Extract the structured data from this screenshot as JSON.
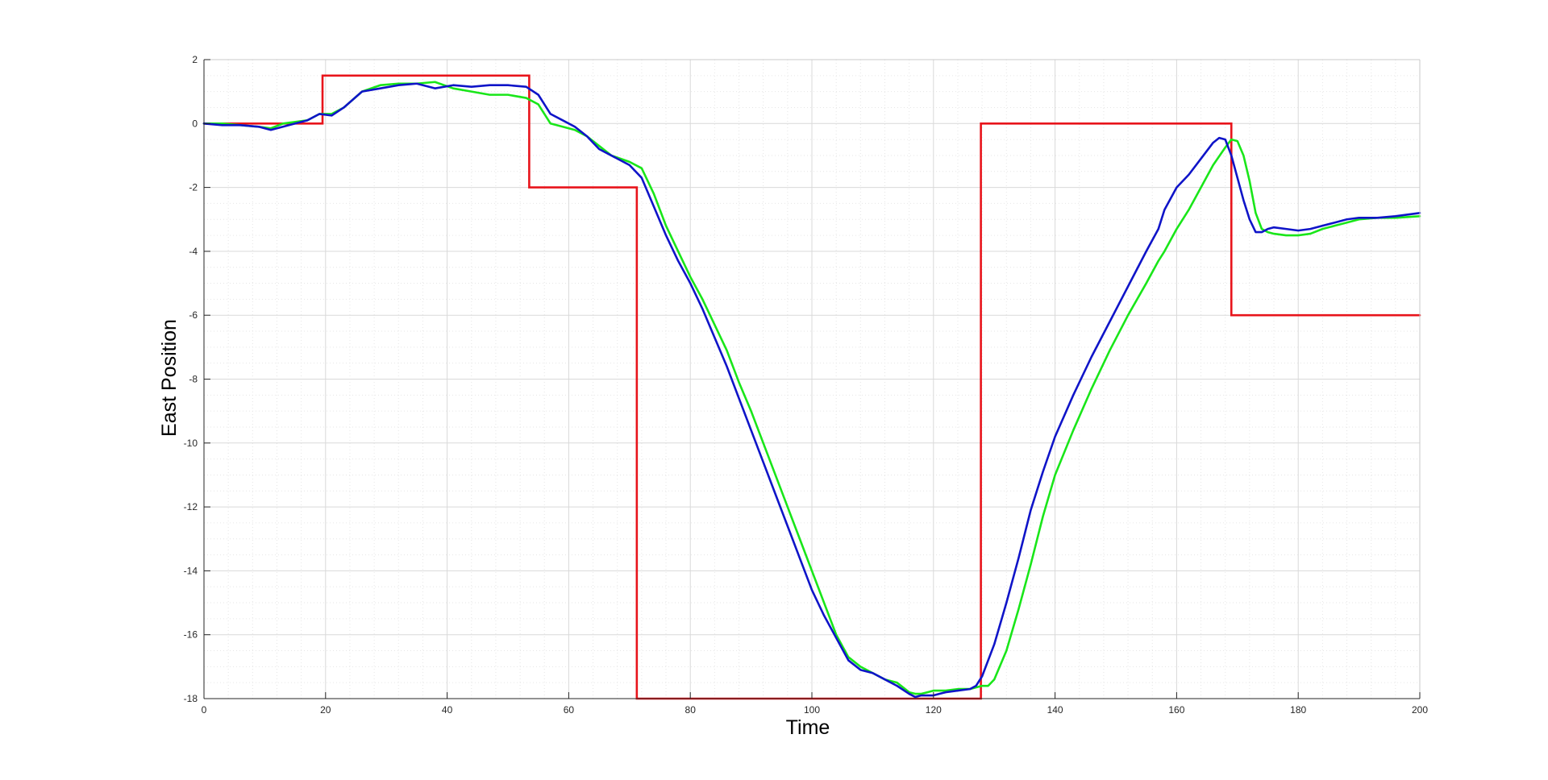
{
  "chart_data": {
    "type": "line",
    "title": "",
    "xlabel": "Time",
    "ylabel": "East Position",
    "xlim": [
      0,
      200
    ],
    "ylim": [
      -18,
      2
    ],
    "xticks": [
      0,
      20,
      40,
      60,
      80,
      100,
      120,
      140,
      160,
      180,
      200
    ],
    "yticks": [
      -18,
      -16,
      -14,
      -12,
      -10,
      -8,
      -6,
      -4,
      -2,
      0,
      2
    ],
    "xtick_labels": [
      "0",
      "20",
      "40",
      "60",
      "80",
      "100",
      "120",
      "140",
      "160",
      "180",
      "200"
    ],
    "ytick_labels": [
      "-18",
      "-16",
      "-14",
      "-12",
      "-10",
      "-8",
      "-6",
      "-4",
      "-2",
      "0",
      "2"
    ],
    "grid": true,
    "minor_grid": true,
    "legend": "none",
    "colors": {
      "reference": "#e8141b",
      "green_series": "#19e619",
      "blue_series": "#0f14c8",
      "axes": "#262626",
      "major_grid": "#d9d9d9",
      "minor_grid": "#e6e6e6"
    },
    "series": [
      {
        "color": "#e8141b",
        "step": true,
        "x": [
          0,
          19.5,
          19.5,
          53.5,
          53.5,
          71.2,
          71.2,
          127.8,
          127.8,
          169,
          169,
          200
        ],
        "y": [
          0,
          0,
          1.5,
          1.5,
          -2,
          -2,
          -18,
          -18,
          0,
          0,
          -6,
          -6
        ]
      },
      {
        "color": "#19e619",
        "x": [
          0,
          3,
          6,
          9,
          11,
          13,
          15,
          17,
          19,
          21,
          23,
          26,
          29,
          32,
          35,
          38,
          41,
          44,
          47,
          50,
          53,
          55,
          57,
          59,
          61,
          63,
          65,
          67,
          70,
          72,
          74,
          76,
          78,
          80,
          82,
          84,
          86,
          88,
          90,
          92,
          94,
          96,
          98,
          100,
          102,
          104,
          106,
          108,
          110,
          112,
          114,
          116,
          117,
          118,
          119,
          120,
          121,
          122,
          124,
          126,
          128,
          129,
          130,
          132,
          134,
          136,
          138,
          140,
          143,
          146,
          149,
          152,
          155,
          157,
          158,
          160,
          162,
          164,
          166,
          168,
          169,
          170,
          171,
          172,
          173,
          174,
          175,
          176,
          178,
          180,
          182,
          184,
          186,
          188,
          190,
          193,
          196,
          200
        ],
        "y": [
          0,
          0,
          -0.05,
          -0.1,
          -0.15,
          0,
          0.05,
          0.1,
          0.3,
          0.3,
          0.5,
          1.0,
          1.2,
          1.25,
          1.25,
          1.3,
          1.1,
          1.0,
          0.9,
          0.9,
          0.8,
          0.6,
          0,
          -0.1,
          -0.2,
          -0.4,
          -0.7,
          -1.0,
          -1.2,
          -1.4,
          -2.2,
          -3.2,
          -4.0,
          -4.8,
          -5.5,
          -6.3,
          -7.1,
          -8.1,
          -9.0,
          -10.0,
          -11.0,
          -12.0,
          -13.0,
          -14.0,
          -15.0,
          -16.0,
          -16.7,
          -17.0,
          -17.2,
          -17.4,
          -17.5,
          -17.8,
          -17.85,
          -17.85,
          -17.8,
          -17.75,
          -17.75,
          -17.75,
          -17.7,
          -17.7,
          -17.6,
          -17.6,
          -17.4,
          -16.5,
          -15.2,
          -13.8,
          -12.3,
          -11.0,
          -9.6,
          -8.3,
          -7.1,
          -6.0,
          -5.0,
          -4.3,
          -4.0,
          -3.3,
          -2.7,
          -2.0,
          -1.3,
          -0.75,
          -0.5,
          -0.55,
          -1.0,
          -1.8,
          -2.8,
          -3.3,
          -3.4,
          -3.45,
          -3.5,
          -3.5,
          -3.45,
          -3.3,
          -3.2,
          -3.1,
          -3.0,
          -2.95,
          -2.95,
          -2.9
        ]
      },
      {
        "color": "#0f14c8",
        "x": [
          0,
          3,
          6,
          9,
          11,
          13,
          15,
          17,
          19,
          21,
          23,
          26,
          29,
          32,
          35,
          38,
          41,
          44,
          47,
          50,
          53,
          55,
          57,
          59,
          61,
          63,
          65,
          67,
          70,
          72,
          74,
          76,
          78,
          80,
          82,
          84,
          86,
          88,
          90,
          92,
          94,
          96,
          98,
          100,
          102,
          104,
          106,
          108,
          110,
          112,
          114,
          116,
          117,
          118,
          119,
          120,
          121,
          122,
          124,
          126,
          127,
          128,
          129,
          130,
          132,
          134,
          136,
          138,
          140,
          143,
          146,
          149,
          152,
          155,
          157,
          158,
          160,
          162,
          164,
          166,
          167,
          168,
          169,
          170,
          171,
          172,
          173,
          174,
          175,
          176,
          178,
          180,
          182,
          184,
          186,
          188,
          190,
          193,
          196,
          200
        ],
        "y": [
          0,
          -0.05,
          -0.05,
          -0.1,
          -0.2,
          -0.1,
          0,
          0.1,
          0.3,
          0.25,
          0.5,
          1.0,
          1.1,
          1.2,
          1.25,
          1.1,
          1.2,
          1.15,
          1.2,
          1.2,
          1.15,
          0.9,
          0.3,
          0.1,
          -0.1,
          -0.4,
          -0.8,
          -1.0,
          -1.3,
          -1.7,
          -2.6,
          -3.5,
          -4.3,
          -5.0,
          -5.8,
          -6.7,
          -7.6,
          -8.6,
          -9.6,
          -10.6,
          -11.6,
          -12.6,
          -13.6,
          -14.6,
          -15.4,
          -16.1,
          -16.8,
          -17.1,
          -17.2,
          -17.4,
          -17.6,
          -17.85,
          -17.95,
          -17.9,
          -17.9,
          -17.9,
          -17.85,
          -17.8,
          -17.75,
          -17.7,
          -17.6,
          -17.3,
          -16.8,
          -16.3,
          -15.0,
          -13.6,
          -12.1,
          -10.9,
          -9.8,
          -8.5,
          -7.3,
          -6.2,
          -5.1,
          -4.0,
          -3.3,
          -2.7,
          -2.0,
          -1.6,
          -1.1,
          -0.6,
          -0.45,
          -0.5,
          -1.0,
          -1.7,
          -2.4,
          -3.0,
          -3.4,
          -3.4,
          -3.3,
          -3.25,
          -3.3,
          -3.35,
          -3.3,
          -3.2,
          -3.1,
          -3.0,
          -2.95,
          -2.95,
          -2.9,
          -2.8
        ]
      }
    ]
  }
}
